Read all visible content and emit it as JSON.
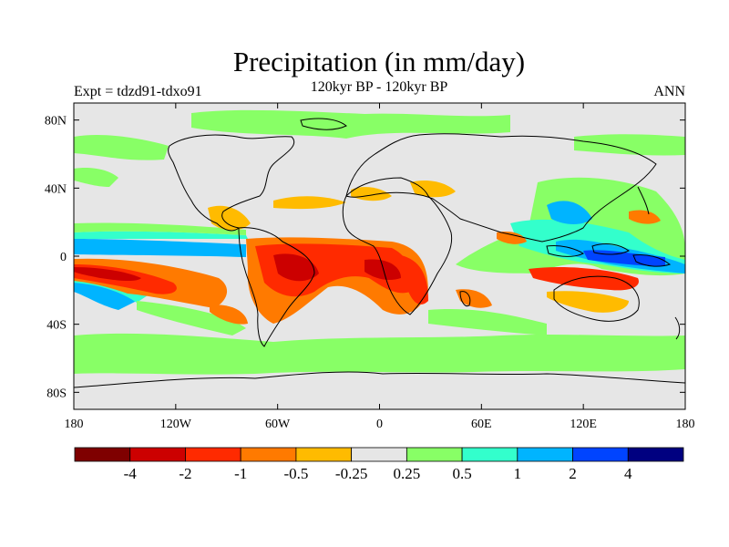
{
  "title": "Precipitation (in mm/day)",
  "subtitle": "120kyr BP - 120kyr BP",
  "left_label": "Expt = tdzd91-tdxo91",
  "right_label": "ANN",
  "lat_ticks": [
    {
      "label": "80N",
      "lat": 80
    },
    {
      "label": "40N",
      "lat": 40
    },
    {
      "label": "0",
      "lat": 0
    },
    {
      "label": "40S",
      "lat": -40
    },
    {
      "label": "80S",
      "lat": -80
    }
  ],
  "lon_ticks": [
    {
      "label": "180",
      "lon": -180
    },
    {
      "label": "120W",
      "lon": -120
    },
    {
      "label": "60W",
      "lon": -60
    },
    {
      "label": "0",
      "lon": 0
    },
    {
      "label": "60E",
      "lon": 60
    },
    {
      "label": "120E",
      "lon": 120
    },
    {
      "label": "180",
      "lon": 180
    }
  ],
  "colorbar": {
    "colors": [
      "#7f0000",
      "#cc0000",
      "#ff2a00",
      "#ff7a00",
      "#ffbb00",
      "#e6e6e6",
      "#88ff66",
      "#33ffcc",
      "#00b4ff",
      "#0044ff",
      "#000080"
    ],
    "labels": [
      "-4",
      "-2",
      "-1",
      "-0.5",
      "-0.25",
      "0.25",
      "0.5",
      "1",
      "2",
      "4"
    ]
  },
  "map_colors": {
    "background": "#e6e6e6",
    "dry_strong": "#cc0000",
    "dry_mid": "#ff2a00",
    "dry_weak": "#ff7a00",
    "dry_slight": "#ffbb00",
    "wet_slight": "#88ff66",
    "wet_weak": "#33ffcc",
    "wet_mid": "#00b4ff",
    "wet_strong": "#0044ff",
    "coast": "#000000"
  }
}
